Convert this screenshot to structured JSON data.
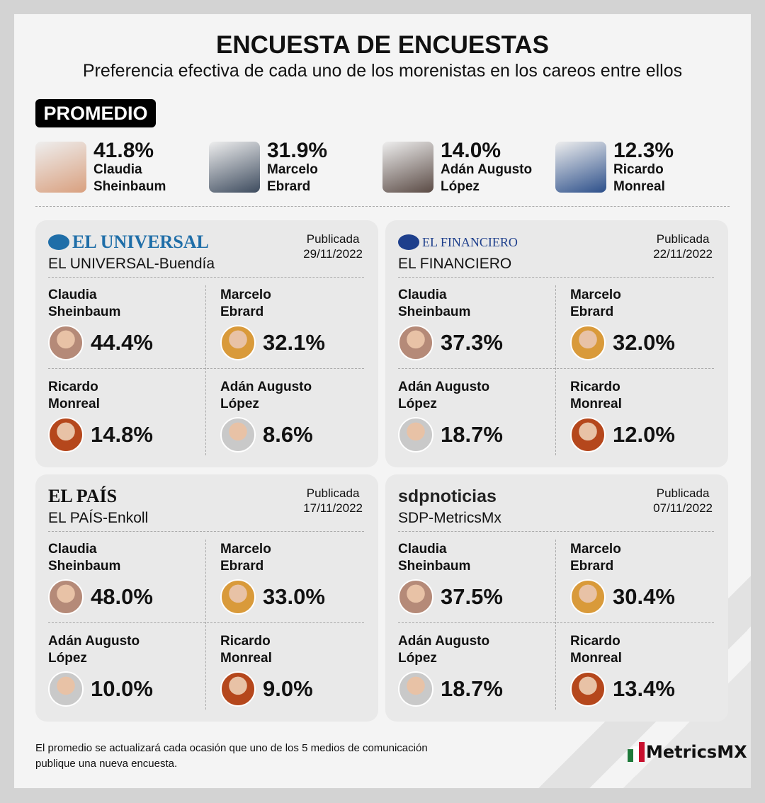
{
  "title": "ENCUESTA DE ENCUESTAS",
  "subtitle": "Preferencia efectiva de cada uno de los morenistas en los careos entre ellos",
  "average": {
    "label": "PROMEDIO",
    "items": [
      {
        "pct": "41.8%",
        "first": "Claudia",
        "last": "Sheinbaum",
        "color": "#d9a07f"
      },
      {
        "pct": "31.9%",
        "first": "Marcelo",
        "last": "Ebrard",
        "color": "#3d4b5e"
      },
      {
        "pct": "14.0%",
        "first": "Adán Augusto",
        "last": "López",
        "color": "#5a4a44"
      },
      {
        "pct": "12.3%",
        "first": "Ricardo",
        "last": "Monreal",
        "color": "#2c4f8a"
      }
    ]
  },
  "polls": [
    {
      "logo": "EL UNIVERSAL",
      "logo_color": "#1f6ea8",
      "name": "EL UNIVERSAL-Buendía",
      "pub_label": "Publicada",
      "date": "29/11/2022",
      "results": [
        {
          "first": "Claudia",
          "last": "Sheinbaum",
          "pct": "44.4%",
          "color": "#b58a78"
        },
        {
          "first": "Marcelo",
          "last": "Ebrard",
          "pct": "32.1%",
          "color": "#d99a3a"
        },
        {
          "first": "Ricardo",
          "last": "Monreal",
          "pct": "14.8%",
          "color": "#b5471c"
        },
        {
          "first": "Adán Augusto",
          "last": "López",
          "pct": "8.6%",
          "color": "#c9c9c9"
        }
      ]
    },
    {
      "logo": "EL FINANCIERO",
      "logo_color": "#1e3f8c",
      "name": "EL FINANCIERO",
      "pub_label": "Publicada",
      "date": "22/11/2022",
      "results": [
        {
          "first": "Claudia",
          "last": "Sheinbaum",
          "pct": "37.3%",
          "color": "#b58a78"
        },
        {
          "first": "Marcelo",
          "last": "Ebrard",
          "pct": "32.0%",
          "color": "#d99a3a"
        },
        {
          "first": "Adán Augusto",
          "last": "López",
          "pct": "18.7%",
          "color": "#c9c9c9"
        },
        {
          "first": "Ricardo",
          "last": "Monreal",
          "pct": "12.0%",
          "color": "#b5471c"
        }
      ]
    },
    {
      "logo": "EL PAÍS",
      "logo_color": "#111111",
      "name": "EL PAÍS-Enkoll",
      "pub_label": "Publicada",
      "date": "17/11/2022",
      "results": [
        {
          "first": "Claudia",
          "last": "Sheinbaum",
          "pct": "48.0%",
          "color": "#b58a78"
        },
        {
          "first": "Marcelo",
          "last": "Ebrard",
          "pct": "33.0%",
          "color": "#d99a3a"
        },
        {
          "first": "Adán Augusto",
          "last": "López",
          "pct": "10.0%",
          "color": "#c9c9c9"
        },
        {
          "first": "Ricardo",
          "last": "Monreal",
          "pct": "9.0%",
          "color": "#b5471c"
        }
      ]
    },
    {
      "logo": "sdpnoticias",
      "logo_color": "#222222",
      "name": "SDP-MetricsMx",
      "pub_label": "Publicada",
      "date": "07/11/2022",
      "results": [
        {
          "first": "Claudia",
          "last": "Sheinbaum",
          "pct": "37.5%",
          "color": "#b58a78"
        },
        {
          "first": "Marcelo",
          "last": "Ebrard",
          "pct": "30.4%",
          "color": "#d99a3a"
        },
        {
          "first": "Adán Augusto",
          "last": "López",
          "pct": "18.7%",
          "color": "#c9c9c9"
        },
        {
          "first": "Ricardo",
          "last": "Monreal",
          "pct": "13.4%",
          "color": "#b5471c"
        }
      ]
    }
  ],
  "footer": {
    "line1": "El promedio se actualizará cada ocasión que uno de los 5 medios de comunicación",
    "line2": "publique una nueva encuesta.",
    "brand": "MetricsMX"
  }
}
